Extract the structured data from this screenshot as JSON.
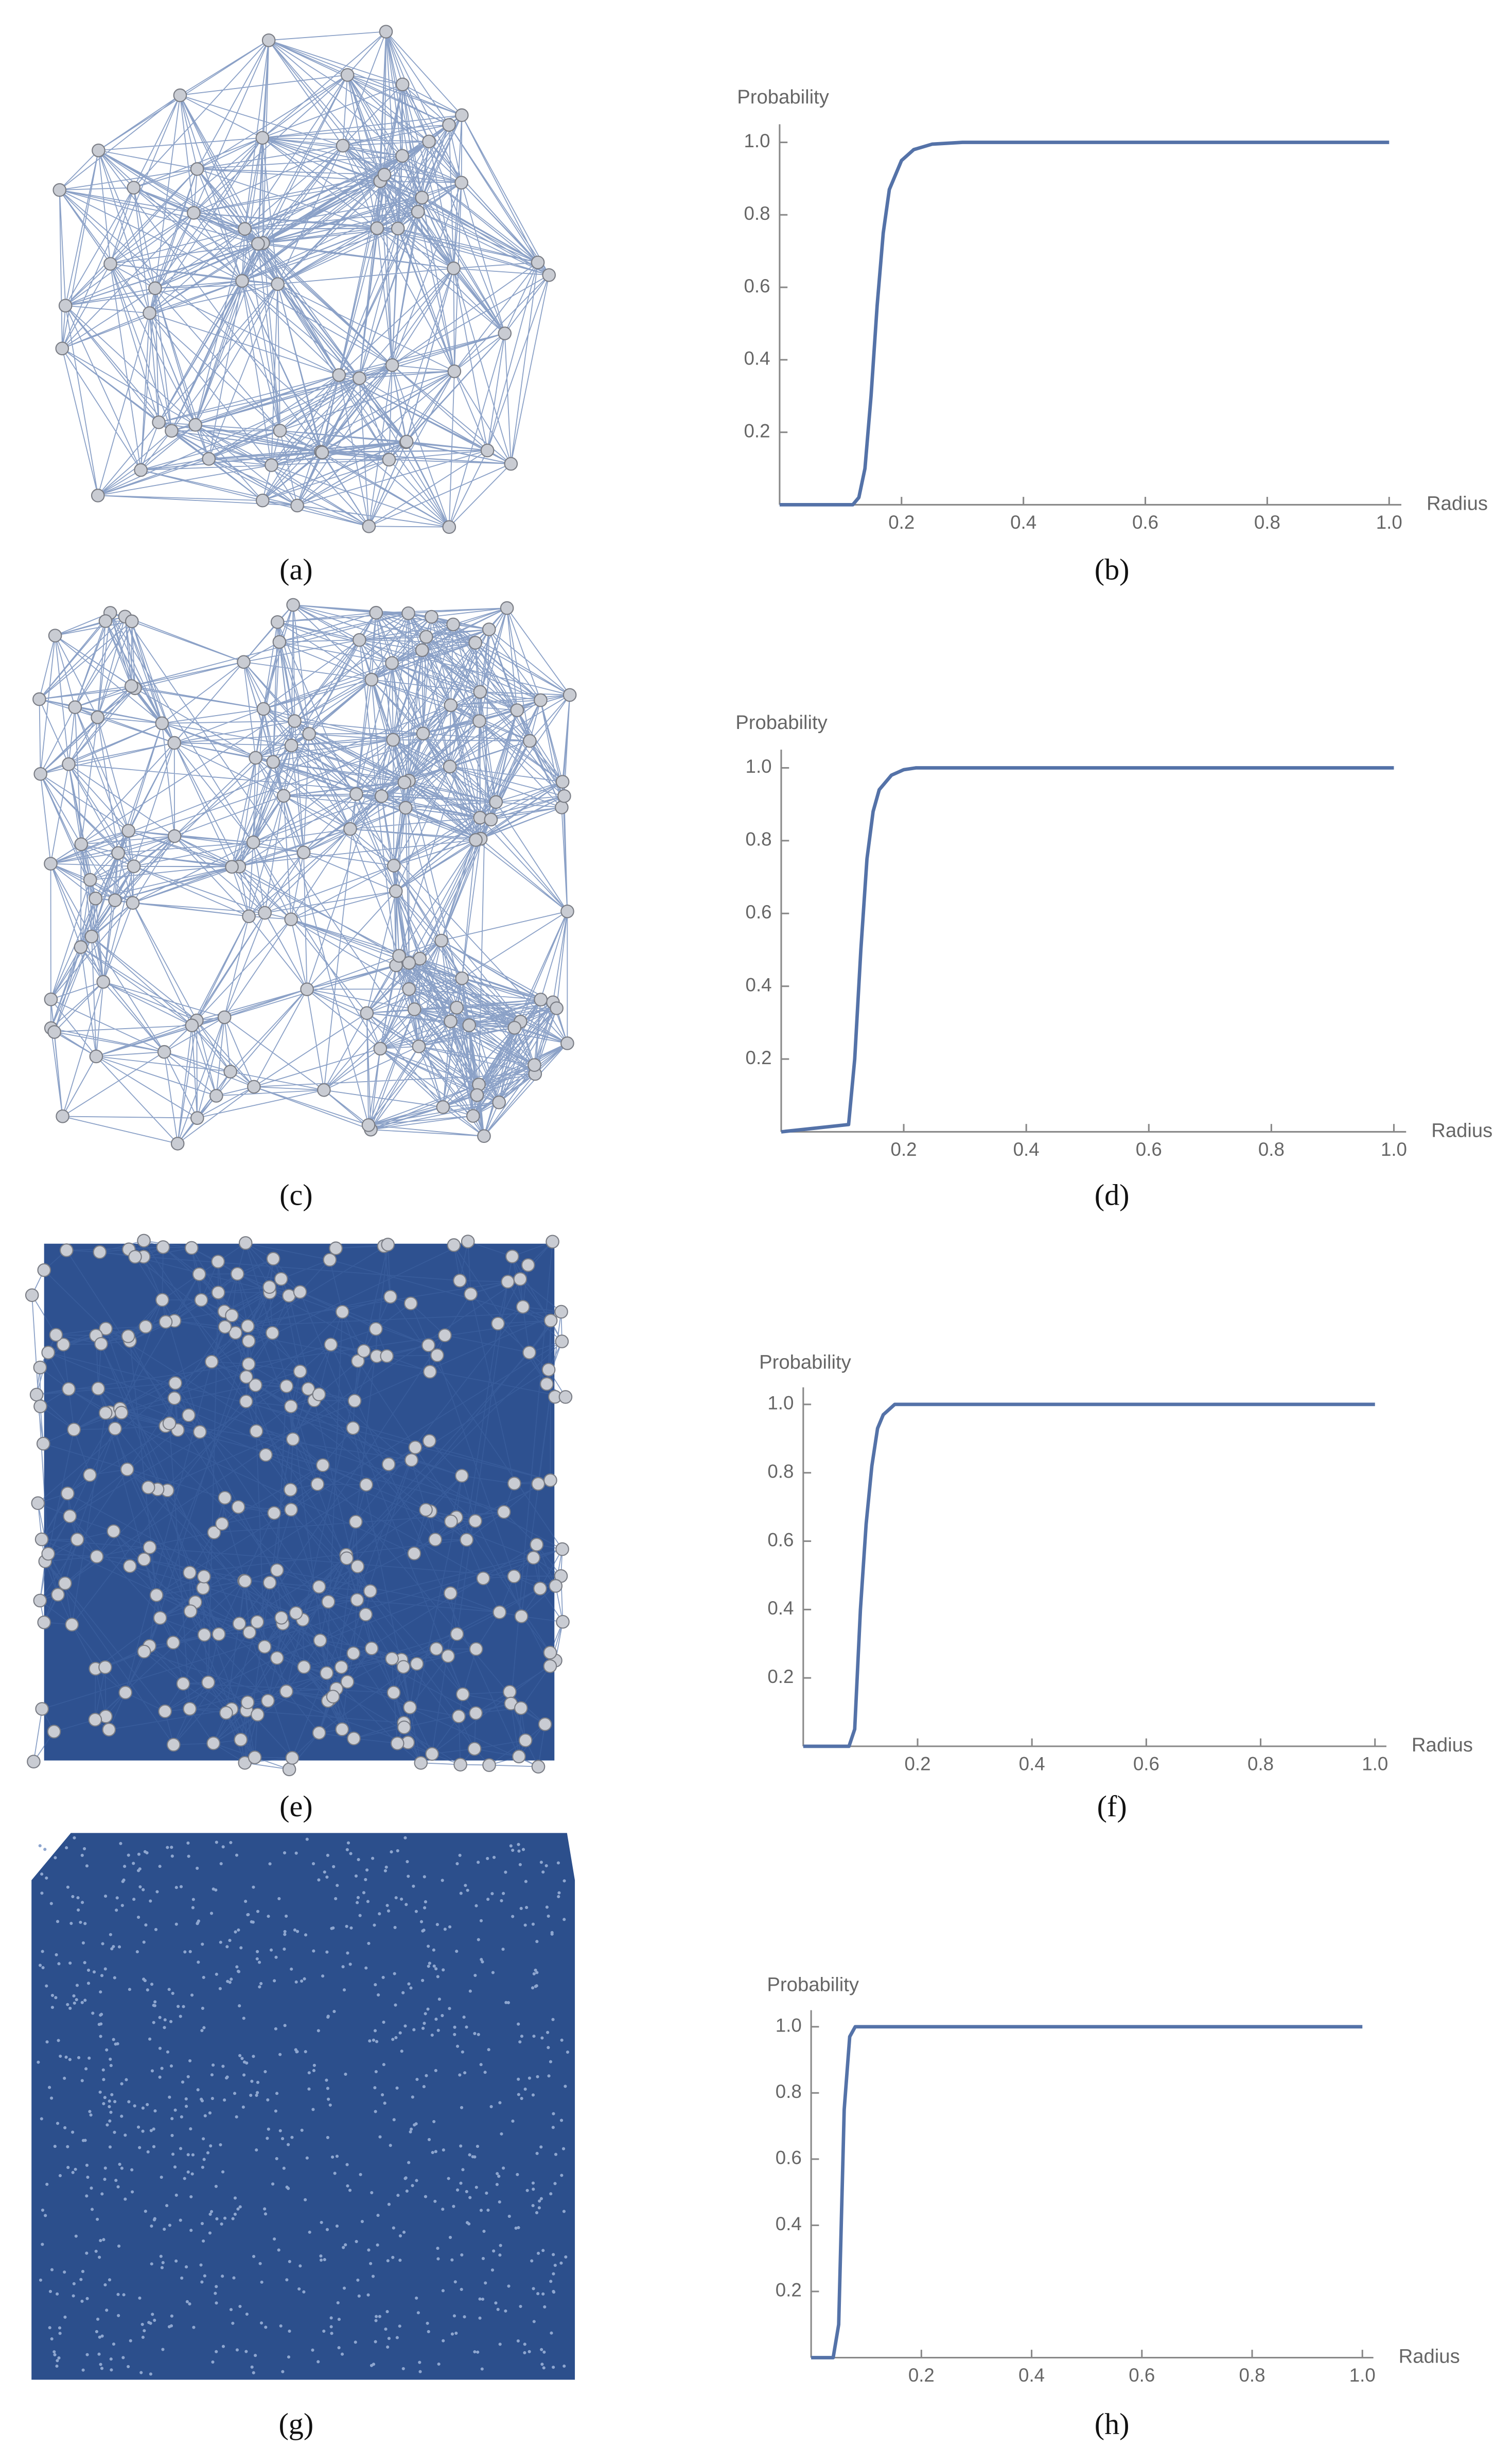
{
  "graph_captions": [
    "(a)",
    "(c)",
    "(e)",
    "(g)"
  ],
  "chart_data": [
    {
      "type": "line",
      "caption": "(b)",
      "ylabel": "Probability",
      "xlabel": "Radius",
      "x": [
        0,
        0.12,
        0.13,
        0.14,
        0.15,
        0.16,
        0.17,
        0.18,
        0.2,
        0.22,
        0.25,
        0.3,
        1
      ],
      "series": [
        {
          "color": "#5472a8",
          "values": [
            0,
            0,
            0.02,
            0.1,
            0.3,
            0.55,
            0.75,
            0.87,
            0.95,
            0.98,
            0.995,
            1,
            1
          ]
        }
      ],
      "xlim": [
        0,
        1.02
      ],
      "ylim": [
        0,
        1.05
      ],
      "xticks": [
        0.2,
        0.4,
        0.6,
        0.8,
        {
          "value": 1,
          "label": "1.0"
        }
      ],
      "yticks": [
        0.2,
        0.4,
        0.6,
        0.8,
        {
          "value": 1,
          "label": "1.0"
        }
      ]
    },
    {
      "type": "line",
      "caption": "(d)",
      "ylabel": "Probability",
      "xlabel": "Radius",
      "x": [
        0,
        0.11,
        0.12,
        0.13,
        0.14,
        0.15,
        0.16,
        0.18,
        0.2,
        0.22,
        1
      ],
      "series": [
        {
          "color": "#5472a8",
          "values": [
            0,
            0.02,
            0.2,
            0.5,
            0.75,
            0.88,
            0.94,
            0.98,
            0.995,
            1,
            1
          ]
        }
      ],
      "xlim": [
        0,
        1.02
      ],
      "ylim": [
        0,
        1.05
      ],
      "xticks": [
        0.2,
        0.4,
        0.6,
        0.8,
        {
          "value": 1,
          "label": "1.0"
        }
      ],
      "yticks": [
        0.2,
        0.4,
        0.6,
        0.8,
        {
          "value": 1,
          "label": "1.0"
        }
      ]
    },
    {
      "type": "line",
      "caption": "(f)",
      "ylabel": "Probability",
      "xlabel": "Radius",
      "x": [
        0,
        0.08,
        0.09,
        0.1,
        0.11,
        0.12,
        0.13,
        0.14,
        0.16,
        1
      ],
      "series": [
        {
          "color": "#5472a8",
          "values": [
            0,
            0,
            0.05,
            0.4,
            0.65,
            0.82,
            0.93,
            0.97,
            1,
            1
          ]
        }
      ],
      "xlim": [
        0,
        1.02
      ],
      "ylim": [
        0,
        1.05
      ],
      "xticks": [
        0.2,
        0.4,
        0.6,
        0.8,
        {
          "value": 1,
          "label": "1.0"
        }
      ],
      "yticks": [
        0.2,
        0.4,
        0.6,
        0.8,
        {
          "value": 1,
          "label": "1.0"
        }
      ]
    },
    {
      "type": "line",
      "caption": "(h)",
      "ylabel": "Probability",
      "xlabel": "Radius",
      "x": [
        0,
        0.04,
        0.05,
        0.06,
        0.07,
        0.08,
        1
      ],
      "series": [
        {
          "color": "#5472a8",
          "values": [
            0,
            0,
            0.1,
            0.75,
            0.97,
            1,
            1
          ]
        }
      ],
      "xlim": [
        0,
        1.02
      ],
      "ylim": [
        0,
        1.05
      ],
      "xticks": [
        0.2,
        0.4,
        0.6,
        0.8,
        {
          "value": 1,
          "label": "1.0"
        }
      ],
      "yticks": [
        0.2,
        0.4,
        0.6,
        0.8,
        {
          "value": 1,
          "label": "1.0"
        }
      ]
    }
  ]
}
